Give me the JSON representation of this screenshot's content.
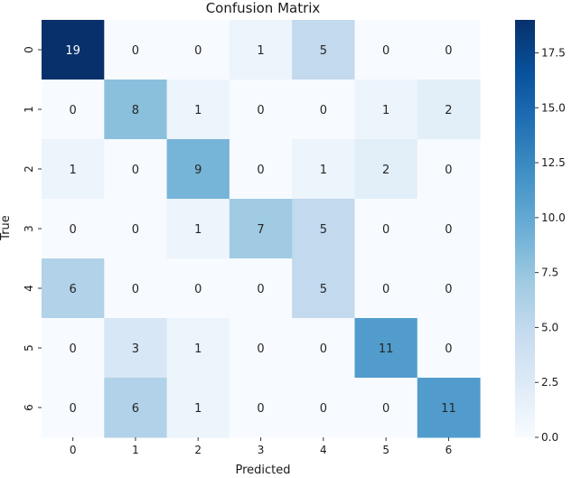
{
  "chart_data": {
    "type": "heatmap",
    "title": "Confusion Matrix",
    "xlabel": "Predicted",
    "ylabel": "True",
    "x_categories": [
      "0",
      "1",
      "2",
      "3",
      "4",
      "5",
      "6"
    ],
    "y_categories": [
      "0",
      "1",
      "2",
      "3",
      "4",
      "5",
      "6"
    ],
    "values": [
      [
        19,
        0,
        0,
        1,
        5,
        0,
        0
      ],
      [
        0,
        8,
        1,
        0,
        0,
        1,
        2
      ],
      [
        1,
        0,
        9,
        0,
        1,
        2,
        0
      ],
      [
        0,
        0,
        1,
        7,
        5,
        0,
        0
      ],
      [
        6,
        0,
        0,
        0,
        5,
        0,
        0
      ],
      [
        0,
        3,
        1,
        0,
        0,
        11,
        0
      ],
      [
        0,
        6,
        1,
        0,
        0,
        0,
        11
      ]
    ],
    "colormap": "Blues",
    "vmin": 0,
    "vmax": 19,
    "colorbar_ticks": [
      "0.0",
      "2.5",
      "5.0",
      "7.5",
      "10.0",
      "12.5",
      "15.0",
      "17.5"
    ],
    "grid": false,
    "legend": "colorbar-right"
  }
}
